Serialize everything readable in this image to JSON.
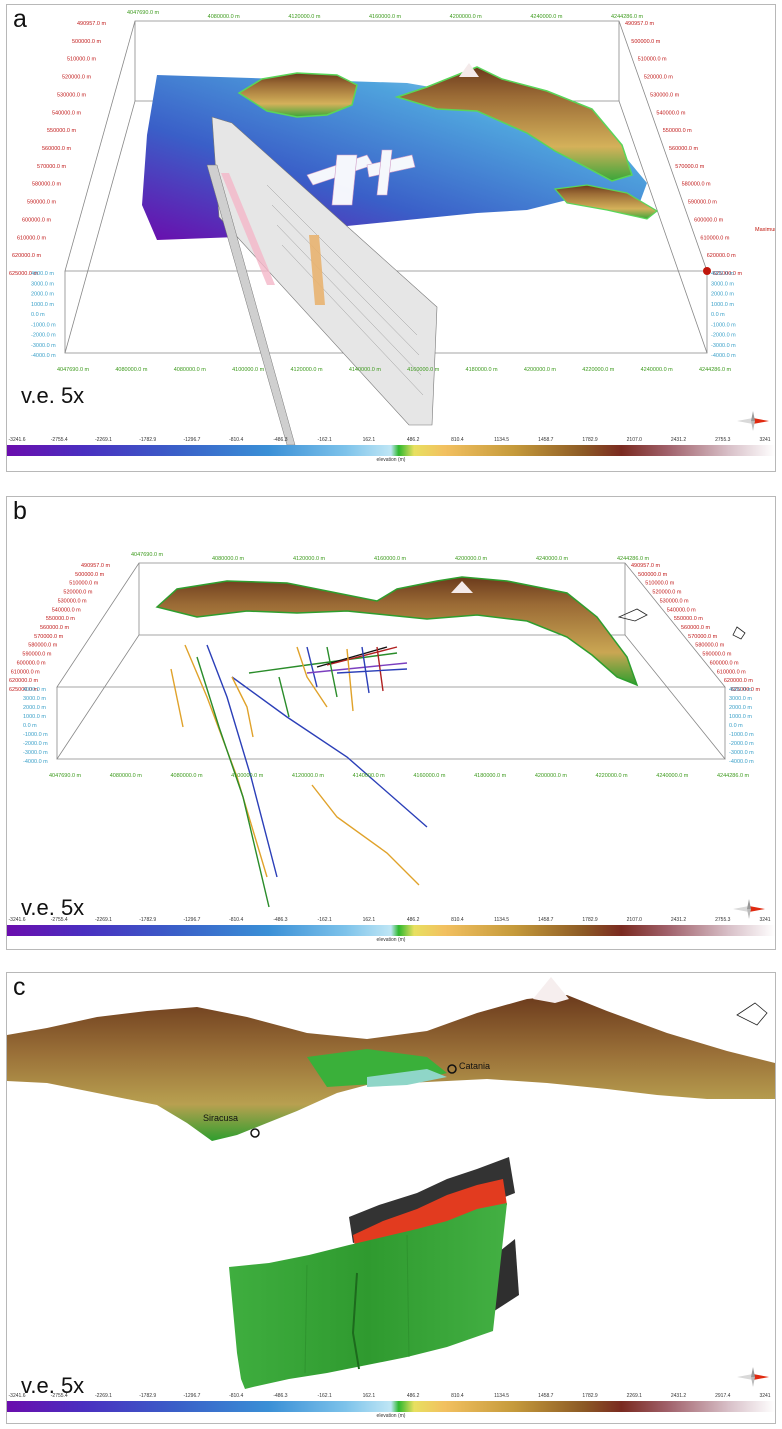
{
  "panels": {
    "a": {
      "label": "a",
      "ve": "v.e. 5x"
    },
    "b": {
      "label": "b",
      "ve": "v.e. 5x"
    },
    "c": {
      "label": "c",
      "ve": "v.e. 5x"
    }
  },
  "colorbar_ab": {
    "ticks": [
      "-3241.6",
      "-2755.4",
      "-2269.1",
      "-1782.9",
      "-1296.7",
      "-810.4",
      "-486.3",
      "-162.1",
      "162.1",
      "486.2",
      "810.4",
      "1134.5",
      "1458.7",
      "1782.9",
      "2107.0",
      "2431.2",
      "2755.3",
      "3241"
    ],
    "label": "elevation (m)"
  },
  "colorbar_c": {
    "ticks": [
      "-3241.6",
      "-2755.4",
      "-2269.1",
      "-1782.9",
      "-1296.7",
      "-810.4",
      "-486.3",
      "-162.1",
      "162.1",
      "486.2",
      "810.4",
      "1134.5",
      "1458.7",
      "1782.9",
      "2269.1",
      "2431.2",
      "2917.4",
      "3241"
    ],
    "label": "elevation (m)"
  },
  "box_labels": {
    "top_green": [
      "4047690.0 m",
      "4080000.0 m",
      "4120000.0 m",
      "4160000.0 m",
      "4200000.0 m",
      "4240000.0 m",
      "4244286.0 m"
    ],
    "bottom_green": [
      "4047690.0 m",
      "4080000.0 m",
      "4080000.0 m",
      "4100000.0 m",
      "4120000.0 m",
      "4140000.0 m",
      "4160000.0 m",
      "4180000.0 m",
      "4200000.0 m",
      "4220000.0 m",
      "4240000.0 m",
      "4244286.0 m"
    ],
    "left_red": [
      "490957.0 m",
      "500000.0 m",
      "510000.0 m",
      "520000.0 m",
      "530000.0 m",
      "540000.0 m",
      "550000.0 m",
      "560000.0 m",
      "570000.0 m",
      "580000.0 m",
      "590000.0 m",
      "600000.0 m",
      "610000.0 m",
      "620000.0 m",
      "625000.0 m"
    ],
    "right_red": [
      "490957.0 m",
      "500000.0 m",
      "510000.0 m",
      "520000.0 m",
      "530000.0 m",
      "540000.0 m",
      "550000.0 m",
      "560000.0 m",
      "570000.0 m",
      "580000.0 m",
      "590000.0 m",
      "600000.0 m",
      "610000.0 m",
      "620000.0 m",
      "625000.0 m"
    ],
    "cyan": [
      "4000.0 m",
      "3000.0 m",
      "2000.0 m",
      "1000.0 m",
      "0.0 m",
      "-1000.0 m",
      "-2000.0 m",
      "-3000.0 m",
      "-4000.0 m"
    ]
  },
  "cities": {
    "catania": "Catania",
    "siracusa": "Siracusa"
  },
  "marker_label": "Maximum",
  "colors": {
    "deep": "#6a0dad",
    "mid": "#3a78c8",
    "shallow": "#a8d8ef",
    "land_low": "#2e9e2e",
    "land_mid": "#c59a3b",
    "land_high": "#8c4a22",
    "peak": "#ffffff",
    "green_wall": "#3da63d",
    "red_top": "#e23b1f",
    "dark_wall": "#333333"
  }
}
